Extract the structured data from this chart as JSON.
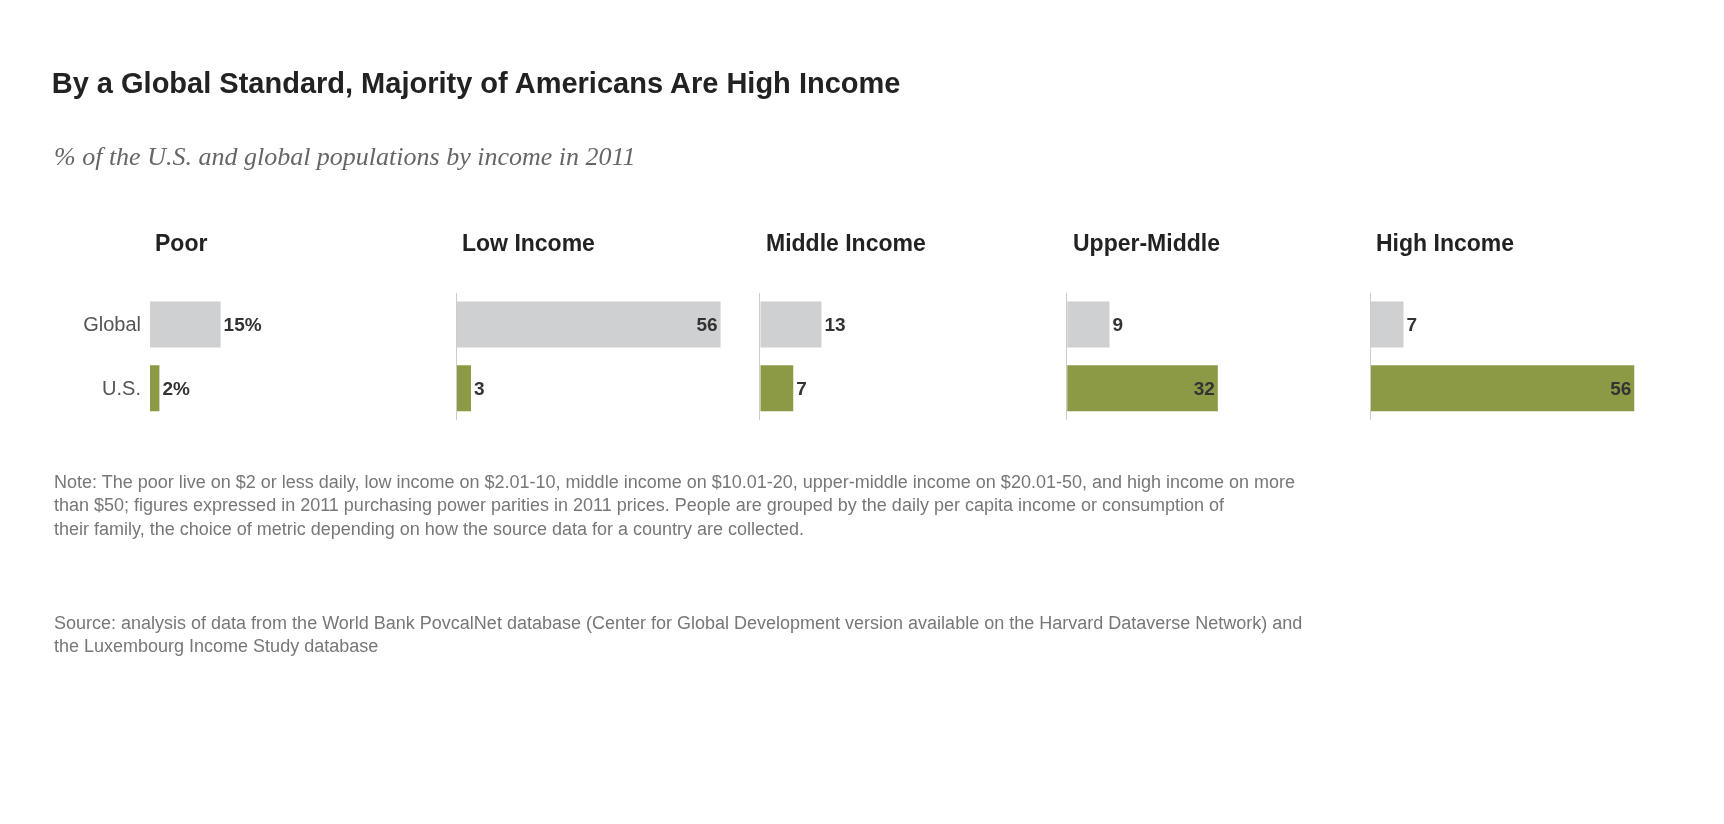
{
  "chart_data": [
    {
      "type": "bar",
      "orientation": "horizontal",
      "title": "By a Global Standard, Majority of Americans Are High Income",
      "subtitle": "% of the U.S. and global populations by income in 2011",
      "xlabel": "Poor",
      "categories": [
        "Global",
        "U.S."
      ],
      "values": [
        15,
        2
      ],
      "value_labels": [
        "15%",
        "2%"
      ],
      "colors": [
        "#cfd0d2",
        "#8c9a45"
      ],
      "tick_labels": "y",
      "annotations": [
        "Note: The poor live on $2 or less daily, low income on $2.01-10, middle income on $10.01-20, upper-middle income on $20.01-50, and high income on more than $50; figures expressed in 2011 purchasing power parities in 2011 prices. People are grouped by the daily per capita income or consumption of their family, the choice of metric depending on how the source data for a country are collected.",
        "Source: analysis of data from the World Bank PovcalNet database (Center for Global Development version available on the Harvard Dataverse Network) and the Luxembourg Income Study database"
      ]
    },
    {
      "type": "bar",
      "orientation": "horizontal",
      "xlabel": "Low Income",
      "categories": [
        null,
        null
      ],
      "values": [
        56,
        3
      ],
      "value_labels": [
        "56",
        "3"
      ],
      "colors": [
        "#cfd0d2",
        "#8c9a45"
      ]
    },
    {
      "type": "bar",
      "orientation": "horizontal",
      "xlabel": "Middle Income",
      "categories": [
        null,
        null
      ],
      "values": [
        13,
        7
      ],
      "value_labels": [
        "13",
        "7"
      ],
      "colors": [
        "#cfd0d2",
        "#8c9a45"
      ]
    },
    {
      "type": "bar",
      "orientation": "horizontal",
      "xlabel": "Upper-Middle",
      "categories": [
        null,
        null
      ],
      "values": [
        9,
        32
      ],
      "value_labels": [
        "9",
        "32"
      ],
      "colors": [
        "#cfd0d2",
        "#8c9a45"
      ]
    },
    {
      "type": "bar",
      "orientation": "horizontal",
      "xlabel": "High Income",
      "categories": [
        null,
        null
      ],
      "values": [
        7,
        56
      ],
      "value_labels": [
        "7",
        "56"
      ],
      "colors": [
        "#cfd0d2",
        "#8c9a45"
      ]
    }
  ]
}
